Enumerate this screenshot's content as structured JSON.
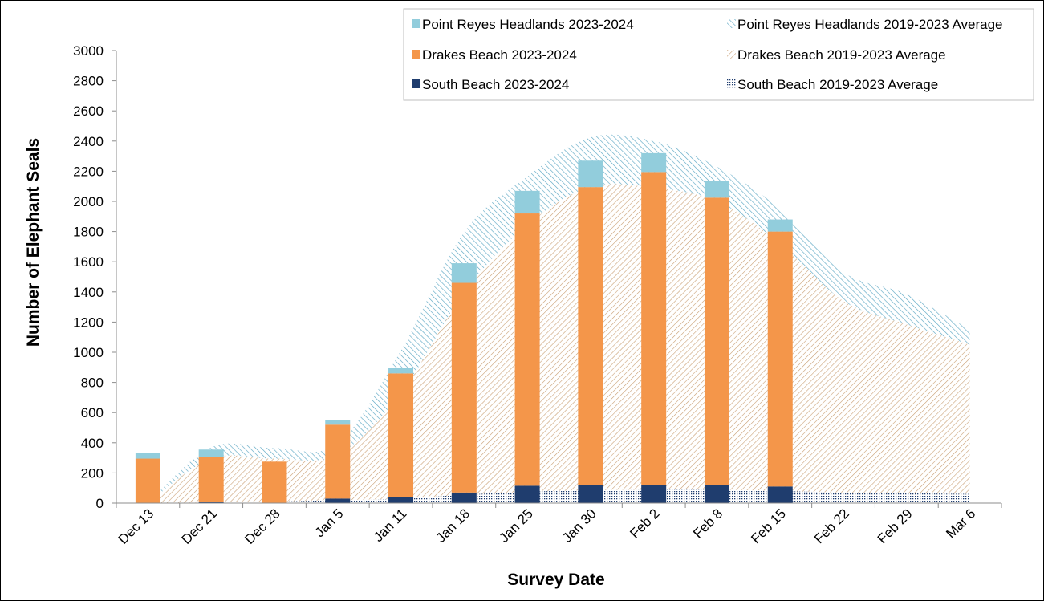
{
  "chart_data": {
    "type": "bar",
    "title": "",
    "xlabel": "Survey Date",
    "ylabel": "Number of Elephant Seals",
    "ylim": [
      0,
      3000
    ],
    "yticks": [
      0,
      200,
      400,
      600,
      800,
      1000,
      1200,
      1400,
      1600,
      1800,
      2000,
      2200,
      2400,
      2600,
      2800,
      3000
    ],
    "categories": [
      "Dec 13",
      "Dec 21",
      "Dec 28",
      "Jan 5",
      "Jan 11",
      "Jan 18",
      "Jan 25",
      "Jan 30",
      "Feb 2",
      "Feb 8",
      "Feb 15",
      "Feb 22",
      "Feb 29",
      "Mar 6"
    ],
    "stacked": true,
    "grid": false,
    "legend_position": "top-right",
    "bar_series": [
      {
        "name": "South Beach 2023-2024",
        "color": "#1f3d6e",
        "values": [
          0,
          10,
          0,
          30,
          40,
          70,
          115,
          120,
          120,
          120,
          110,
          null,
          null,
          null
        ]
      },
      {
        "name": "Drakes Beach 2023-2024",
        "color": "#f4964a",
        "values": [
          295,
          295,
          275,
          490,
          820,
          1390,
          1805,
          1975,
          2075,
          1905,
          1690,
          null,
          null,
          null
        ]
      },
      {
        "name": "Point Reyes Headlands 2023-2024",
        "color": "#92cddc",
        "values": [
          40,
          50,
          0,
          30,
          35,
          130,
          150,
          175,
          125,
          110,
          80,
          null,
          null,
          null
        ]
      }
    ],
    "area_series": [
      {
        "name": "South Beach 2019-2023 Average",
        "color": "#1f3d6e",
        "pattern": "dots",
        "values": [
          0,
          5,
          10,
          20,
          30,
          55,
          75,
          85,
          90,
          90,
          80,
          70,
          65,
          60
        ]
      },
      {
        "name": "Drakes Beach 2019-2023 Average",
        "color": "#c9a074",
        "pattern": "diag-right",
        "values": [
          0,
          290,
          285,
          300,
          700,
          1340,
          1770,
          2010,
          2000,
          1910,
          1640,
          1270,
          1120,
          990
        ]
      },
      {
        "name": "Point Reyes Headlands 2019-2023 Average",
        "color": "#5ea8c4",
        "pattern": "diag-left",
        "values": [
          0,
          75,
          70,
          75,
          280,
          400,
          320,
          330,
          310,
          230,
          230,
          190,
          200,
          100
        ]
      }
    ],
    "legend": [
      {
        "label": "Point Reyes Headlands 2023-2024",
        "kind": "solid",
        "color": "#92cddc"
      },
      {
        "label": "Point Reyes Headlands 2019-2023 Average",
        "kind": "pattern",
        "pattern": "diag-left",
        "color": "#5ea8c4"
      },
      {
        "label": "Drakes Beach 2023-2024",
        "kind": "solid",
        "color": "#f4964a"
      },
      {
        "label": "Drakes Beach 2019-2023 Average",
        "kind": "pattern",
        "pattern": "diag-right",
        "color": "#c9a074"
      },
      {
        "label": "South Beach 2023-2024",
        "kind": "solid",
        "color": "#1f3d6e"
      },
      {
        "label": "South Beach 2019-2023 Average",
        "kind": "pattern",
        "pattern": "dots",
        "color": "#1f3d6e"
      }
    ]
  }
}
